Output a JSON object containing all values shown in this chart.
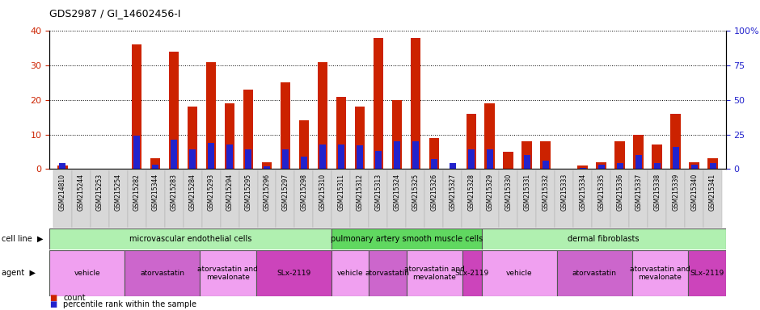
{
  "title": "GDS2987 / GI_14602456-I",
  "samples": [
    "GSM214810",
    "GSM215244",
    "GSM215253",
    "GSM215254",
    "GSM215282",
    "GSM215344",
    "GSM215283",
    "GSM215284",
    "GSM215293",
    "GSM215294",
    "GSM215295",
    "GSM215296",
    "GSM215297",
    "GSM215298",
    "GSM215310",
    "GSM215311",
    "GSM215312",
    "GSM215313",
    "GSM215324",
    "GSM215325",
    "GSM215326",
    "GSM215327",
    "GSM215328",
    "GSM215329",
    "GSM215330",
    "GSM215331",
    "GSM215332",
    "GSM215333",
    "GSM215334",
    "GSM215335",
    "GSM215336",
    "GSM215337",
    "GSM215338",
    "GSM215339",
    "GSM215340",
    "GSM215341"
  ],
  "count_values": [
    1,
    0,
    0,
    0,
    36,
    3,
    34,
    18,
    31,
    19,
    23,
    2,
    25,
    14,
    31,
    21,
    18,
    38,
    20,
    38,
    9,
    0,
    16,
    19,
    5,
    8,
    8,
    0,
    1,
    2,
    8,
    10,
    7,
    16,
    2,
    3
  ],
  "percentile_values": [
    4,
    0,
    0,
    0,
    24,
    3,
    21,
    14,
    19,
    18,
    14,
    2,
    14,
    9,
    18,
    18,
    17,
    13,
    20,
    20,
    7,
    4,
    14,
    14,
    0,
    10,
    6,
    0,
    1,
    3,
    4,
    10,
    4,
    16,
    3,
    4
  ],
  "cell_line_groups": [
    {
      "label": "microvascular endothelial cells",
      "start": 0,
      "end": 15,
      "color": "#b0f0b0"
    },
    {
      "label": "pulmonary artery smooth muscle cells",
      "start": 15,
      "end": 23,
      "color": "#60d860"
    },
    {
      "label": "dermal fibroblasts",
      "start": 23,
      "end": 36,
      "color": "#b0f0b0"
    }
  ],
  "agent_groups": [
    {
      "label": "vehicle",
      "start": 0,
      "end": 4,
      "color": "#f0a0f0"
    },
    {
      "label": "atorvastatin",
      "start": 4,
      "end": 8,
      "color": "#cc66cc"
    },
    {
      "label": "atorvastatin and\nmevalonate",
      "start": 8,
      "end": 11,
      "color": "#f0a0f0"
    },
    {
      "label": "SLx-2119",
      "start": 11,
      "end": 15,
      "color": "#cc44bb"
    },
    {
      "label": "vehicle",
      "start": 15,
      "end": 17,
      "color": "#f0a0f0"
    },
    {
      "label": "atorvastatin",
      "start": 17,
      "end": 19,
      "color": "#cc66cc"
    },
    {
      "label": "atorvastatin and\nmevalonate",
      "start": 19,
      "end": 22,
      "color": "#f0a0f0"
    },
    {
      "label": "SLx-2119",
      "start": 22,
      "end": 23,
      "color": "#cc44bb"
    },
    {
      "label": "vehicle",
      "start": 23,
      "end": 27,
      "color": "#f0a0f0"
    },
    {
      "label": "atorvastatin",
      "start": 27,
      "end": 31,
      "color": "#cc66cc"
    },
    {
      "label": "atorvastatin and\nmevalonate",
      "start": 31,
      "end": 34,
      "color": "#f0a0f0"
    },
    {
      "label": "SLx-2119",
      "start": 34,
      "end": 36,
      "color": "#cc44bb"
    }
  ],
  "bar_color_red": "#cc2200",
  "bar_color_blue": "#2222cc",
  "bar_width": 0.55,
  "blue_bar_width": 0.35,
  "ylim_left": [
    0,
    40
  ],
  "ylim_right": [
    0,
    100
  ],
  "yticks_left": [
    0,
    10,
    20,
    30,
    40
  ],
  "yticks_right": [
    0,
    25,
    50,
    75,
    100
  ],
  "ylabel_left_color": "#cc2200",
  "ylabel_right_color": "#2222cc",
  "plot_bg": "#ffffff",
  "tick_area_bg": "#d8d8d8",
  "xticklabel_fontsize": 5.5,
  "title_fontsize": 9
}
